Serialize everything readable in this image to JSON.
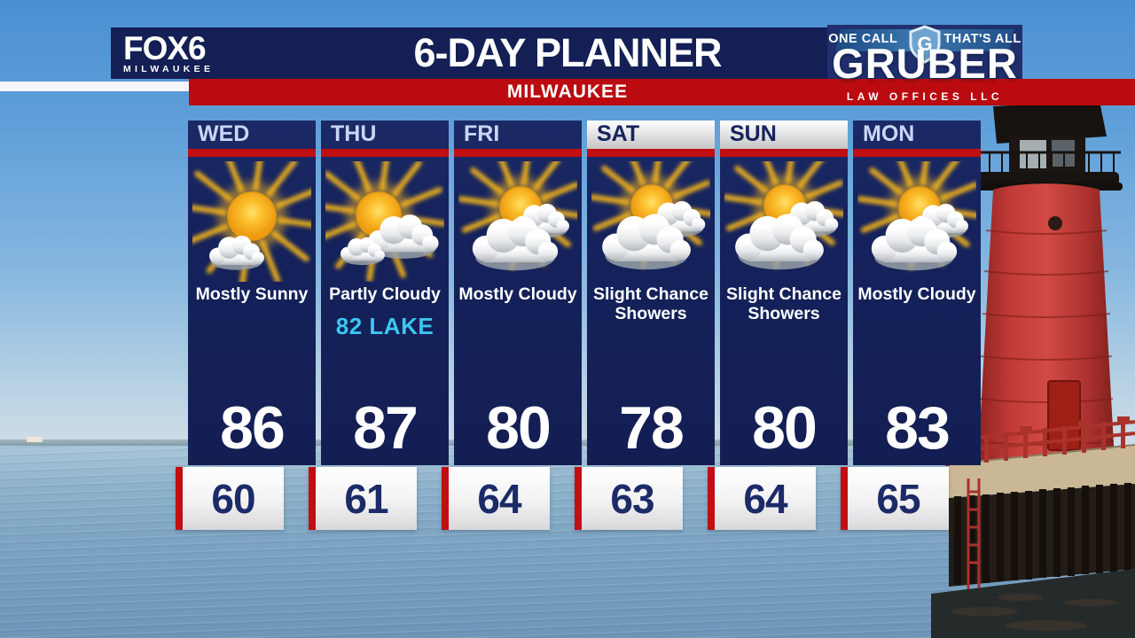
{
  "station": {
    "name": "FOX6",
    "city": "MILWAUKEE"
  },
  "header": {
    "title": "6-DAY PLANNER",
    "location": "MILWAUKEE"
  },
  "sponsor": {
    "tagline_left": "ONE CALL",
    "tagline_right": "THAT'S ALL",
    "shield_letter": "G",
    "name": "GRUBER",
    "subname": "LAW OFFICES LLC"
  },
  "days": [
    {
      "label": "WED",
      "condition": "Mostly Sunny",
      "lake": "",
      "high": "86",
      "low": "60",
      "icon": "mostly-sunny-icon",
      "weekend": false
    },
    {
      "label": "THU",
      "condition": "Partly Cloudy",
      "lake": "82 LAKE",
      "high": "87",
      "low": "61",
      "icon": "partly-cloudy-icon",
      "weekend": false
    },
    {
      "label": "FRI",
      "condition": "Mostly Cloudy",
      "lake": "",
      "high": "80",
      "low": "64",
      "icon": "mostly-cloudy-icon",
      "weekend": false
    },
    {
      "label": "SAT",
      "condition": "Slight Chance Showers",
      "lake": "",
      "high": "78",
      "low": "63",
      "icon": "chance-showers-icon",
      "weekend": true
    },
    {
      "label": "SUN",
      "condition": "Slight Chance Showers",
      "lake": "",
      "high": "80",
      "low": "64",
      "icon": "chance-showers-icon",
      "weekend": true
    },
    {
      "label": "MON",
      "condition": "Mostly Cloudy",
      "lake": "",
      "high": "83",
      "low": "65",
      "icon": "mostly-cloudy-icon",
      "weekend": false
    }
  ],
  "palette": {
    "navy": "#15225c",
    "accent_red": "#c10e12",
    "weekday_label": "#cbd6f6",
    "lake_cyan": "#3cc6f0",
    "low_temp_navy": "#1c2b68"
  }
}
